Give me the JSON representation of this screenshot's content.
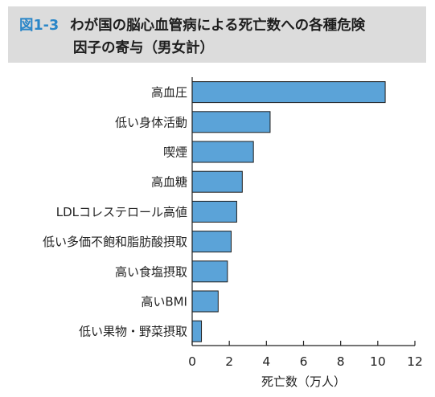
{
  "figure": {
    "number": "図1-3",
    "title_line1": "わが国の脳心血管病による死亡数への各種危険",
    "title_line2": "因子の寄与（男女計）"
  },
  "colors": {
    "bar": "#5ba3d8",
    "bar_stroke": "#1d1d1d",
    "header_bg": "#dcdcdc",
    "figure_number": "#2a86c8"
  },
  "chart_data": {
    "type": "bar",
    "orientation": "horizontal",
    "categories": [
      "高血圧",
      "低い身体活動",
      "喫煙",
      "高血糖",
      "LDLコレステロール高値",
      "低い多価不飽和脂肪酸摂取",
      "高い食塩摂取",
      "高いBMI",
      "低い果物・野菜摂取"
    ],
    "values": [
      10.4,
      4.2,
      3.3,
      2.7,
      2.4,
      2.1,
      1.9,
      1.4,
      0.5
    ],
    "xlabel": "死亡数（万人）",
    "ylabel": "",
    "xlim": [
      0,
      12
    ],
    "xticks": [
      0,
      2,
      4,
      6,
      8,
      10,
      12
    ],
    "grid": false
  }
}
